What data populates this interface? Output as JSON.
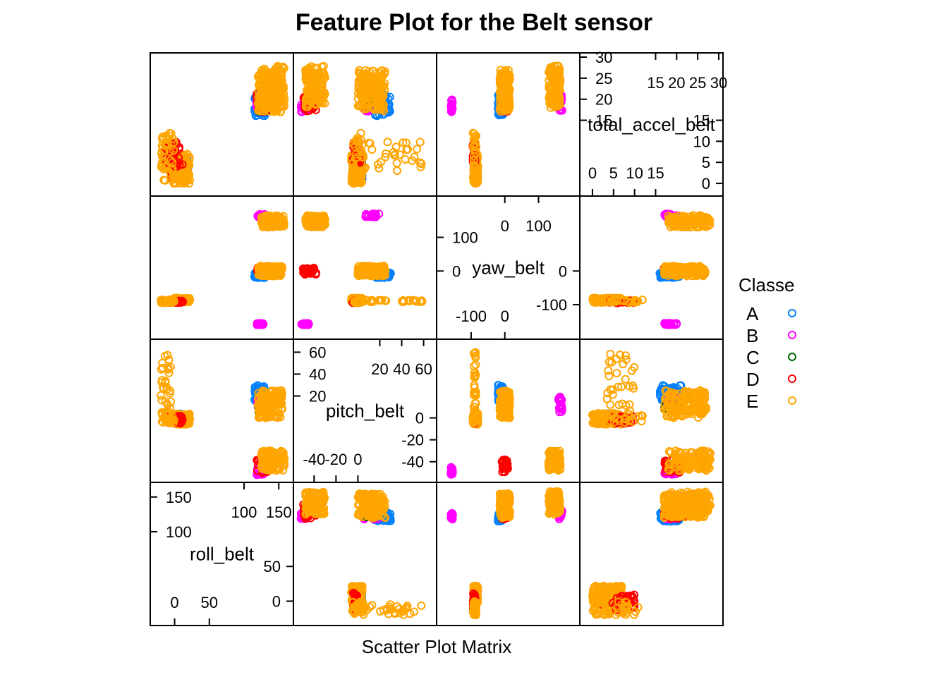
{
  "chart_data": {
    "type": "scatter",
    "title": "Feature Plot for the Belt sensor",
    "xlabel": "Scatter Plot Matrix",
    "variables": [
      {
        "name": "roll_belt",
        "range": [
          -29,
          165
        ],
        "ticks_low": [
          0,
          50
        ],
        "ticks_high": [
          100,
          150
        ]
      },
      {
        "name": "pitch_belt",
        "range": [
          -55,
          68
        ],
        "ticks_low": [
          -40,
          -20,
          0
        ],
        "ticks_high": [
          20,
          40,
          60
        ]
      },
      {
        "name": "yaw_belt",
        "range": [
          -190,
          210
        ],
        "ticks_low": [
          -100,
          0
        ],
        "ticks_high": [
          0,
          100
        ]
      },
      {
        "name": "total_accel_belt",
        "range": [
          -2,
          30
        ],
        "ticks_low": [
          0,
          5,
          10,
          15
        ],
        "ticks_high": [
          15,
          20,
          25,
          30
        ]
      }
    ],
    "legend": {
      "title": "Classe",
      "placement": "right",
      "entries": [
        {
          "label": "A",
          "color": "#0080ff"
        },
        {
          "label": "B",
          "color": "#ff00ff"
        },
        {
          "label": "C",
          "color": "#006400"
        },
        {
          "label": "D",
          "color": "#ff0000"
        },
        {
          "label": "E",
          "color": "#ffa500"
        }
      ]
    },
    "clusters": [
      {
        "cls": "D",
        "roll": [
          -5,
          8
        ],
        "pitch": [
          -3,
          3
        ],
        "yaw": [
          -92,
          -86
        ],
        "accel": [
          1,
          6
        ],
        "n": 90
      },
      {
        "cls": "A",
        "roll": [
          2,
          20
        ],
        "pitch": [
          -2,
          4
        ],
        "yaw": [
          -90,
          -83
        ],
        "accel": [
          1,
          6
        ],
        "n": 40
      },
      {
        "cls": "E",
        "roll": [
          -2,
          22
        ],
        "pitch": [
          -6,
          4
        ],
        "yaw": [
          -93,
          -80
        ],
        "accel": [
          0,
          7
        ],
        "n": 140
      },
      {
        "cls": "E",
        "roll": [
          -20,
          -4
        ],
        "pitch": [
          5,
          60
        ],
        "yaw": [
          -92,
          -86
        ],
        "accel": [
          3,
          10
        ],
        "n": 30
      },
      {
        "cls": "D",
        "roll": [
          -15,
          12
        ],
        "pitch": [
          -5,
          2
        ],
        "yaw": [
          -95,
          -88
        ],
        "accel": [
          4,
          10
        ],
        "n": 30
      },
      {
        "cls": "A",
        "roll": [
          115,
          130
        ],
        "pitch": [
          15,
          30
        ],
        "yaw": [
          -20,
          -5
        ],
        "accel": [
          16,
          21
        ],
        "n": 60
      },
      {
        "cls": "B",
        "roll": [
          118,
          128
        ],
        "pitch": [
          -52,
          -45
        ],
        "yaw": [
          -160,
          -155
        ],
        "accel": [
          17,
          20
        ],
        "n": 20
      },
      {
        "cls": "B",
        "roll": [
          118,
          130
        ],
        "pitch": [
          5,
          20
        ],
        "yaw": [
          160,
          170
        ],
        "accel": [
          17,
          21
        ],
        "n": 20
      },
      {
        "cls": "C",
        "roll": [
          120,
          135
        ],
        "pitch": [
          5,
          15
        ],
        "yaw": [
          -5,
          5
        ],
        "accel": [
          17,
          22
        ],
        "n": 15
      },
      {
        "cls": "D",
        "roll": [
          118,
          140
        ],
        "pitch": [
          -50,
          -38
        ],
        "yaw": [
          -10,
          10
        ],
        "accel": [
          17,
          22
        ],
        "n": 30
      },
      {
        "cls": "E",
        "roll": [
          120,
          155
        ],
        "pitch": [
          0,
          25
        ],
        "yaw": [
          -15,
          15
        ],
        "accel": [
          17,
          27
        ],
        "n": 160
      },
      {
        "cls": "E",
        "roll": [
          125,
          158
        ],
        "pitch": [
          -48,
          -30
        ],
        "yaw": [
          130,
          165
        ],
        "accel": [
          18,
          28
        ],
        "n": 120
      },
      {
        "cls": "E",
        "roll": [
          -20,
          0
        ],
        "pitch": [
          -5,
          5
        ],
        "yaw": [
          -95,
          -85
        ],
        "accel": [
          0,
          12
        ],
        "n": 30
      }
    ]
  }
}
